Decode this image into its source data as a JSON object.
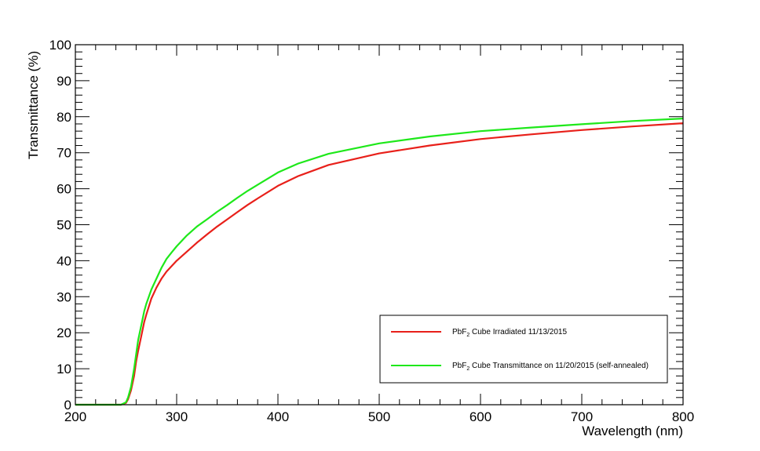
{
  "chart_data": {
    "type": "line",
    "xlabel": "Wavelength (nm)",
    "ylabel": "Transmittance (%)",
    "xlim": [
      200,
      800
    ],
    "ylim": [
      0,
      100
    ],
    "x_ticks": [
      "200",
      "300",
      "400",
      "500",
      "600",
      "700",
      "800"
    ],
    "y_ticks": [
      "0",
      "10",
      "20",
      "30",
      "40",
      "50",
      "60",
      "70",
      "80",
      "90",
      "100"
    ],
    "grid": false,
    "legend_position": "bottom-right",
    "series": [
      {
        "name_parts": [
          "PbF",
          "2",
          " Cube Irradiated 11/13/2015"
        ],
        "color": "#e8201a",
        "x": [
          200,
          245,
          250,
          252,
          255,
          258,
          260,
          262,
          265,
          268,
          270,
          275,
          280,
          285,
          290,
          295,
          300,
          310,
          320,
          330,
          340,
          350,
          360,
          370,
          380,
          400,
          420,
          450,
          500,
          550,
          600,
          650,
          700,
          750,
          800
        ],
        "y": [
          0,
          0,
          0.5,
          1.5,
          4,
          8,
          12,
          15,
          19,
          23,
          25,
          29.5,
          32.5,
          35,
          37,
          38.5,
          40,
          42.5,
          45,
          47.3,
          49.5,
          51.5,
          53.5,
          55.5,
          57.3,
          60.8,
          63.5,
          66.6,
          69.8,
          72,
          73.8,
          75.1,
          76.3,
          77.3,
          78.2
        ]
      },
      {
        "name_parts": [
          "PbF",
          "2",
          " Cube Transmittance on 11/20/2015 (self-annealed)"
        ],
        "color": "#1ee81a",
        "x": [
          200,
          245,
          250,
          252,
          255,
          258,
          260,
          262,
          265,
          268,
          270,
          275,
          280,
          285,
          290,
          295,
          300,
          310,
          320,
          330,
          340,
          350,
          360,
          370,
          380,
          400,
          420,
          450,
          500,
          550,
          600,
          650,
          700,
          750,
          800
        ],
        "y": [
          0,
          0,
          0.7,
          2,
          5,
          10,
          14,
          18,
          22,
          26,
          28,
          32,
          35,
          38,
          40.5,
          42.3,
          44,
          47,
          49.5,
          51.5,
          53.6,
          55.5,
          57.5,
          59.4,
          61.1,
          64.5,
          67,
          69.7,
          72.6,
          74.5,
          76,
          77,
          77.9,
          78.8,
          79.5
        ]
      }
    ]
  }
}
